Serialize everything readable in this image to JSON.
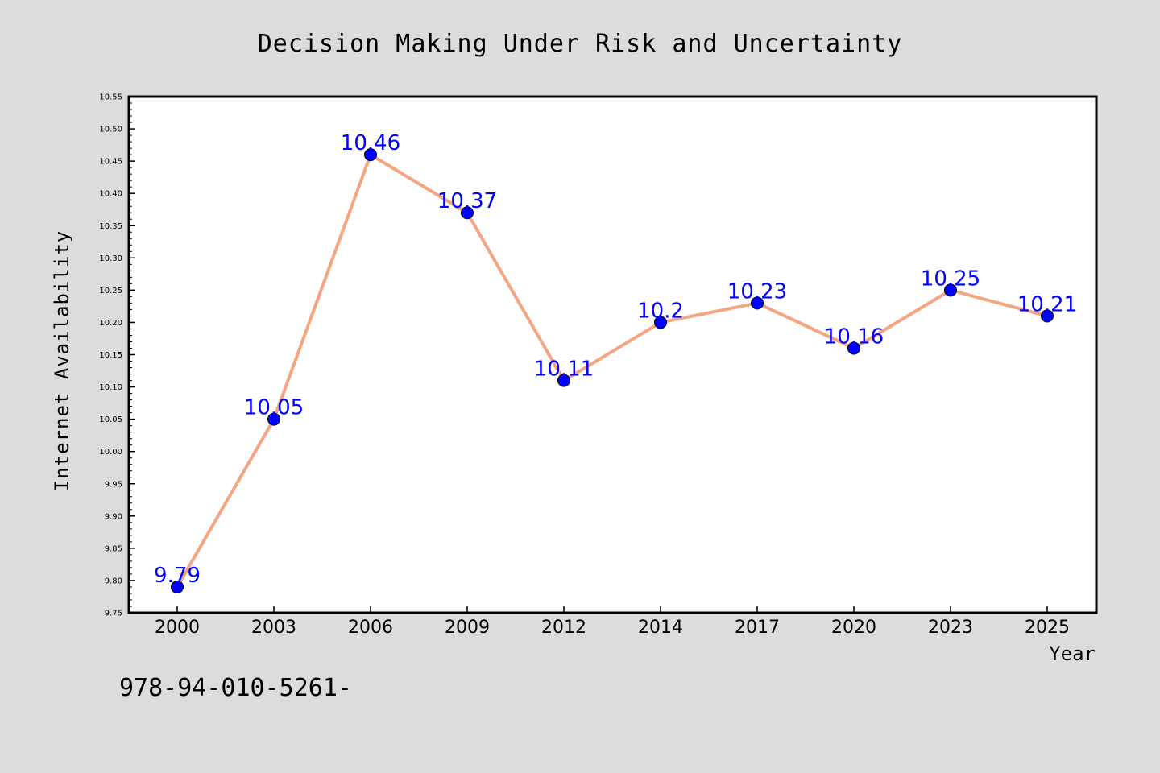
{
  "chart_data": {
    "type": "line",
    "title": "Decision Making Under Risk and Uncertainty",
    "xlabel": "Year",
    "ylabel": "Internet Availability",
    "categories": [
      "2000",
      "2003",
      "2006",
      "2009",
      "2012",
      "2014",
      "2017",
      "2020",
      "2023",
      "2025"
    ],
    "series": [
      {
        "values": [
          9.79,
          10.05,
          10.46,
          10.37,
          10.11,
          10.2,
          10.23,
          10.16,
          10.25,
          10.21
        ],
        "labels": [
          "9.79",
          "10.05",
          "10.46",
          "10.37",
          "10.11",
          "10.2",
          "10.23",
          "10.16",
          "10.25",
          "10.21"
        ],
        "line_color": "#f4a582",
        "marker_color": "#0000ff",
        "label_color": "#0000ff"
      }
    ],
    "ylim": [
      9.75,
      10.55
    ],
    "yticks": [
      "9.75",
      "9.80",
      "9.85",
      "9.90",
      "9.95",
      "10.00",
      "10.05",
      "10.10",
      "10.15",
      "10.20",
      "10.25",
      "10.30",
      "10.35",
      "10.40",
      "10.45",
      "10.50",
      "10.55"
    ],
    "grid": false,
    "legend": false
  },
  "footer": {
    "text": "978-94-010-5261-"
  },
  "colors": {
    "background": "#dcdcdc",
    "plot_background": "#ffffff"
  }
}
